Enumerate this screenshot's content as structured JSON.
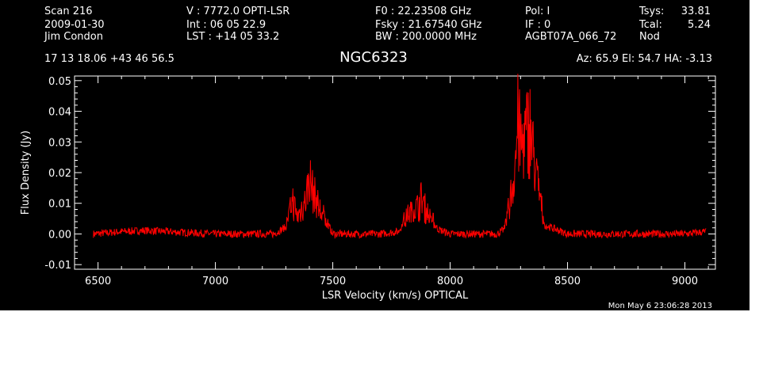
{
  "header": {
    "col1": [
      "Scan        216",
      "2009-01-30",
      "Jim Condon"
    ],
    "col2": [
      "V   :    7772.0 OPTI-LSR",
      "Int  :  06 05 22.9",
      "LST : +14 05 33.2"
    ],
    "col3": [
      "F0   :  22.23508 GHz",
      "Fsky :  21.67540 GHz",
      "BW   : 200.0000 MHz"
    ],
    "col4": [
      "Pol:     I",
      "IF :     0",
      "AGBT07A_066_72"
    ],
    "col5_labels": [
      "Tsys:",
      "Tcal:",
      "Nod"
    ],
    "col5_values": [
      "33.81",
      "5.24",
      ""
    ],
    "coords": "17 13 18.06  +43 46 56.5",
    "source": "NGC6323",
    "azel": "Az:  65.9   El:  54.7   HA: -3.13",
    "timestamp": "Mon May  6 23:06:28 2013"
  },
  "chart_data": {
    "type": "line",
    "xlabel": "LSR Velocity (km/s) OPTICAL",
    "ylabel": "Flux Density (Jy)",
    "xlim": [
      6400,
      9130
    ],
    "ylim": [
      -0.0115,
      0.0515
    ],
    "xticks": [
      6500,
      7000,
      7500,
      8000,
      8500,
      9000
    ],
    "xtick_labels": [
      "6500",
      "7000",
      "7500",
      "8000",
      "8500",
      "9000"
    ],
    "yticks": [
      -0.01,
      0.0,
      0.01,
      0.02,
      0.03,
      0.04,
      0.05
    ],
    "ytick_labels": [
      "-0.01",
      "0.00",
      "0.01",
      "0.02",
      "0.03",
      "0.04",
      "0.05"
    ],
    "line_color": "#ff0000",
    "series": [
      {
        "x_start": 6480,
        "x_end": 9090,
        "approx_x": [
          6480,
          6600,
          6700,
          7000,
          7250,
          7300,
          7330,
          7350,
          7370,
          7390,
          7400,
          7410,
          7430,
          7450,
          7480,
          7500,
          7700,
          7780,
          7800,
          7830,
          7860,
          7880,
          7900,
          7950,
          8000,
          8200,
          8230,
          8250,
          8270,
          8280,
          8290,
          8300,
          8320,
          8340,
          8360,
          8380,
          8400,
          8500,
          8700,
          9000,
          9090
        ],
        "approx_y": [
          0.0,
          0.001,
          0.0015,
          0.0,
          0.0,
          0.003,
          0.012,
          0.006,
          0.01,
          0.015,
          0.02,
          0.017,
          0.012,
          0.008,
          0.004,
          0.0,
          0.0,
          0.001,
          0.005,
          0.008,
          0.01,
          0.013,
          0.008,
          0.002,
          0.0,
          0.0,
          0.002,
          0.01,
          0.02,
          0.03,
          0.042,
          0.032,
          0.035,
          0.04,
          0.025,
          0.015,
          0.004,
          0.0,
          0.0,
          0.0,
          0.001
        ]
      }
    ]
  }
}
